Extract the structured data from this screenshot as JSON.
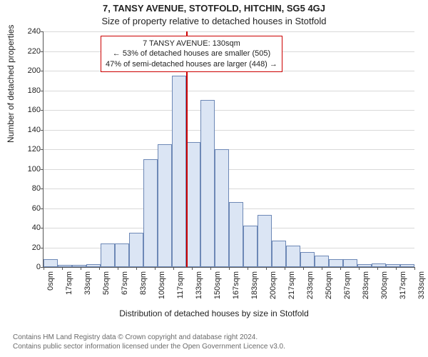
{
  "address_line": "7, TANSY AVENUE, STOTFOLD, HITCHIN, SG5 4GJ",
  "subtitle": "Size of property relative to detached houses in Stotfold",
  "ylabel": "Number of detached properties",
  "xlabel": "Distribution of detached houses by size in Stotfold",
  "footer_line1": "Contains HM Land Registry data © Crown copyright and database right 2024.",
  "footer_line2": "Contains public sector information licensed under the Open Government Licence v3.0.",
  "chart": {
    "type": "histogram",
    "bar_fill": "#dbe5f4",
    "bar_border": "#6d88b6",
    "grid_color": "#d9d9d9",
    "axis_color": "#555555",
    "marker_color": "#cc0000",
    "background": "#ffffff",
    "font_size_ticks": 11,
    "font_size_labels": 12,
    "font_size_title": 13,
    "ylim": [
      0,
      240
    ],
    "ytick_step": 20,
    "xtick_labels": [
      "0sqm",
      "17sqm",
      "33sqm",
      "50sqm",
      "67sqm",
      "83sqm",
      "100sqm",
      "117sqm",
      "133sqm",
      "150sqm",
      "167sqm",
      "183sqm",
      "200sqm",
      "217sqm",
      "233sqm",
      "250sqm",
      "267sqm",
      "283sqm",
      "300sqm",
      "317sqm",
      "333sqm"
    ],
    "values": [
      8,
      2,
      2,
      3,
      24,
      24,
      35,
      110,
      125,
      195,
      127,
      170,
      120,
      66,
      42,
      53,
      27,
      22,
      15,
      12,
      8,
      8,
      3,
      4,
      3,
      3
    ],
    "marker_bin_boundary_index": 10,
    "annotation": {
      "line1": "7 TANSY AVENUE: 130sqm",
      "line2": "← 53% of detached houses are smaller (505)",
      "line3": "47% of semi-detached houses are larger (448) →"
    }
  }
}
